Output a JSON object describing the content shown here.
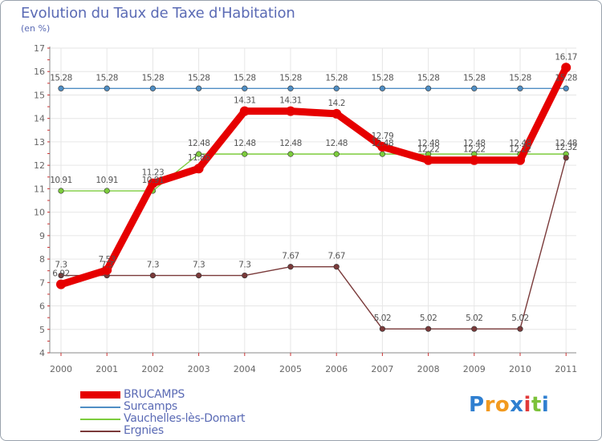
{
  "chart_data": {
    "type": "line",
    "title": "Evolution du Taux de Taxe d'Habitation",
    "ylabel": "(en %)",
    "xlabel": "",
    "categories": [
      "2000",
      "2001",
      "2002",
      "2003",
      "2004",
      "2005",
      "2006",
      "2007",
      "2008",
      "2009",
      "2010",
      "2011"
    ],
    "ylim": [
      4,
      17
    ],
    "yticks": [
      "4",
      "5",
      "6",
      "7",
      "8",
      "9",
      "10",
      "11",
      "12",
      "13",
      "14",
      "15",
      "16",
      "17"
    ],
    "grid": true,
    "series": [
      {
        "name": "BRUCAMPS",
        "color": "#e60000",
        "values": [
          6.92,
          7.53,
          11.23,
          11.86,
          14.31,
          14.31,
          14.2,
          12.79,
          12.22,
          12.22,
          12.22,
          16.17
        ],
        "labels": [
          "6.92",
          "7.53",
          "11.23",
          "11.86",
          "14.31",
          "14.31",
          "14.2",
          "12.79",
          "12.22",
          "12.22",
          "12.22",
          "16.17"
        ]
      },
      {
        "name": "Surcamps",
        "color": "#4f8ec4",
        "values": [
          15.28,
          15.28,
          15.28,
          15.28,
          15.28,
          15.28,
          15.28,
          15.28,
          15.28,
          15.28,
          15.28,
          15.28
        ],
        "labels": [
          "15.28",
          "15.28",
          "15.28",
          "15.28",
          "15.28",
          "15.28",
          "15.28",
          "15.28",
          "15.28",
          "15.28",
          "15.28",
          "15.28"
        ]
      },
      {
        "name": "Vauchelles-lès-Domart",
        "color": "#7ccc3c",
        "values": [
          10.91,
          10.91,
          10.91,
          12.48,
          12.48,
          12.48,
          12.48,
          12.48,
          12.48,
          12.48,
          12.48,
          12.48
        ],
        "labels": [
          "10.91",
          "10.91",
          "10.91",
          "12.48",
          "12.48",
          "12.48",
          "12.48",
          "12.48",
          "12.48",
          "12.48",
          "12.48",
          "12.48"
        ]
      },
      {
        "name": "Ergnies",
        "color": "#7a3a3a",
        "values": [
          7.3,
          7.3,
          7.3,
          7.3,
          7.3,
          7.67,
          7.67,
          5.02,
          5.02,
          5.02,
          5.02,
          12.32
        ],
        "labels": [
          "7.3",
          "7.3",
          "7.3",
          "7.3",
          "7.3",
          "7.67",
          "7.67",
          "5.02",
          "5.02",
          "5.02",
          "5.02",
          "12.32"
        ]
      }
    ],
    "legend_position": "bottom-left"
  },
  "logo": {
    "letters": [
      "P",
      "r",
      "o",
      "x",
      "i",
      "t",
      "i"
    ],
    "colors": [
      "#2f7fd0",
      "#f29a1f",
      "#f29a1f",
      "#2f7fd0",
      "#e13a3a",
      "#7cc23a",
      "#2f7fd0"
    ]
  }
}
